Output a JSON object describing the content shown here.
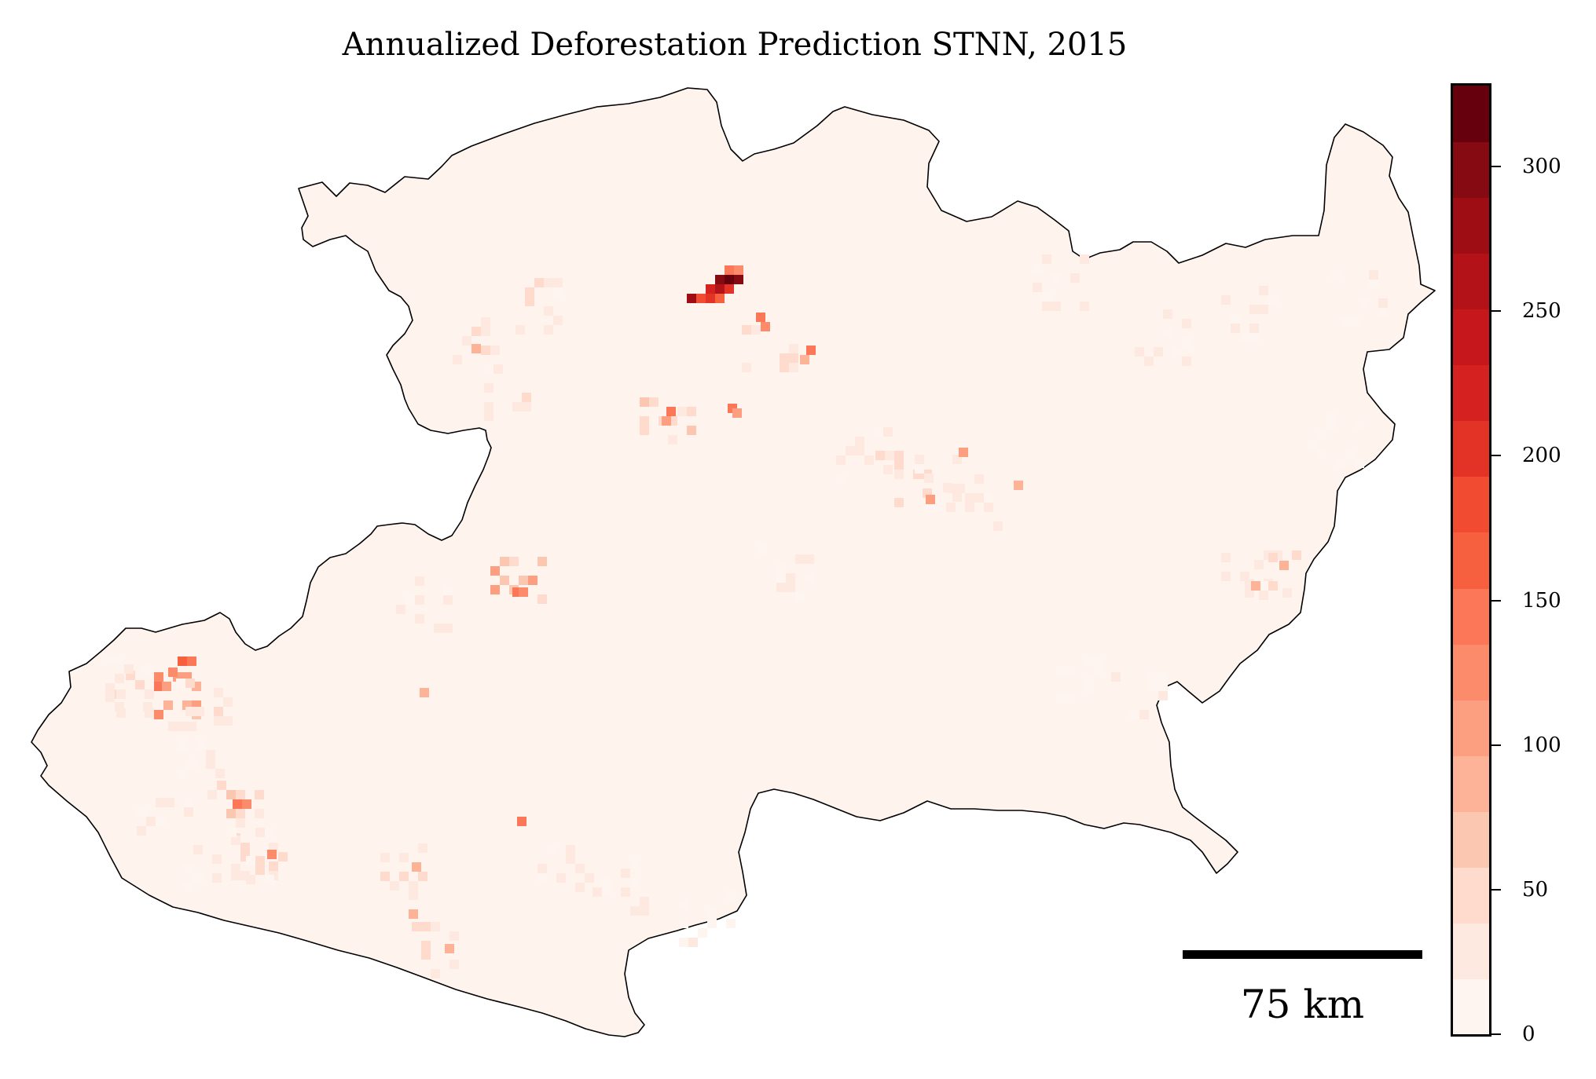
{
  "title": "Annualized Deforestation Prediction STNN, 2015",
  "scale_bar": {
    "label": "75 km"
  },
  "colorbar": {
    "min": 0,
    "max": 328,
    "ticks": [
      "0",
      "50",
      "100",
      "150",
      "200",
      "250",
      "300"
    ],
    "colors": [
      "#fff5f0",
      "#fee9e0",
      "#fedbcc",
      "#fcc7b1",
      "#fcb398",
      "#fc9f80",
      "#fc8b6b",
      "#fb7757",
      "#f6603f",
      "#f14b32",
      "#e33327",
      "#d52221",
      "#c5171c",
      "#b21218",
      "#9e0d14",
      "#850a11",
      "#67000d"
    ]
  },
  "chart_data": {
    "type": "heatmap",
    "title": "Annualized Deforestation Prediction STNN, 2015",
    "colorbar_range": [
      0,
      328
    ],
    "colorbar_ticks": [
      0,
      50,
      100,
      150,
      200,
      250,
      300
    ],
    "hotspots": [
      {
        "region": "north-central",
        "approx_value": 320
      },
      {
        "region": "north-central",
        "approx_value": 290
      },
      {
        "region": "north-central",
        "approx_value": 230
      },
      {
        "region": "north-central south",
        "approx_value": 150
      },
      {
        "region": "north-west",
        "approx_value": 100
      },
      {
        "region": "central",
        "approx_value": 150
      },
      {
        "region": "west coast",
        "approx_value": 160
      },
      {
        "region": "south",
        "approx_value": 150
      },
      {
        "region": "east",
        "approx_value": 90
      },
      {
        "region": "central-east",
        "approx_value": 100
      }
    ]
  }
}
